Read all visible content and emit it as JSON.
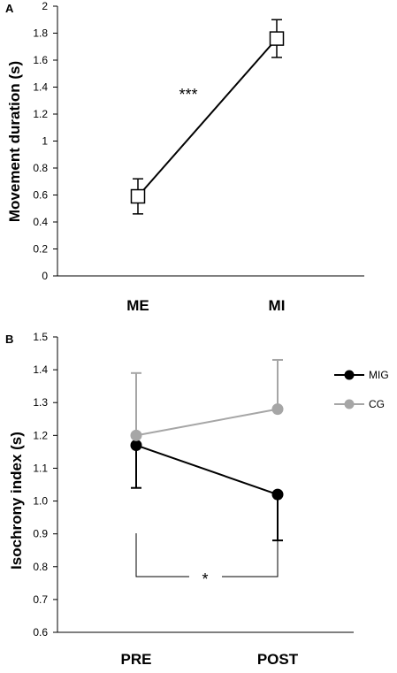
{
  "chart_data": [
    {
      "panel": "A",
      "type": "line",
      "categories": [
        "ME",
        "MI"
      ],
      "ylabel": "Movement duration (s)",
      "ylim": [
        0,
        2
      ],
      "yticks": [
        "0",
        "0.2",
        "0.4",
        "0.6",
        "0.8",
        "1",
        "1.2",
        "1.4",
        "1.6",
        "1.8",
        "2"
      ],
      "series": [
        {
          "values": [
            0.59,
            1.76
          ],
          "errors": [
            0.13,
            0.14
          ],
          "marker": "square",
          "color": "#000000"
        }
      ],
      "annotation": "***",
      "grid": false
    },
    {
      "panel": "B",
      "type": "line",
      "categories": [
        "PRE",
        "POST"
      ],
      "ylabel": "Isochrony index (s)",
      "ylim": [
        0.6,
        1.5
      ],
      "yticks": [
        "0.6",
        "0.7",
        "0.8",
        "0.9",
        "1.0",
        "1.1",
        "1.2",
        "1.3",
        "1.4",
        "1.5"
      ],
      "series": [
        {
          "name": "MIG",
          "values": [
            1.17,
            1.02
          ],
          "errors": [
            0.13,
            0.14
          ],
          "error_direction": "down",
          "marker": "circle",
          "color": "#000000"
        },
        {
          "name": "CG",
          "values": [
            1.2,
            1.28
          ],
          "errors": [
            0.19,
            0.15
          ],
          "error_direction": "up",
          "marker": "circle",
          "color": "#a6a6a6"
        }
      ],
      "legend": "top-right",
      "annotation": "*",
      "grid": false
    }
  ]
}
